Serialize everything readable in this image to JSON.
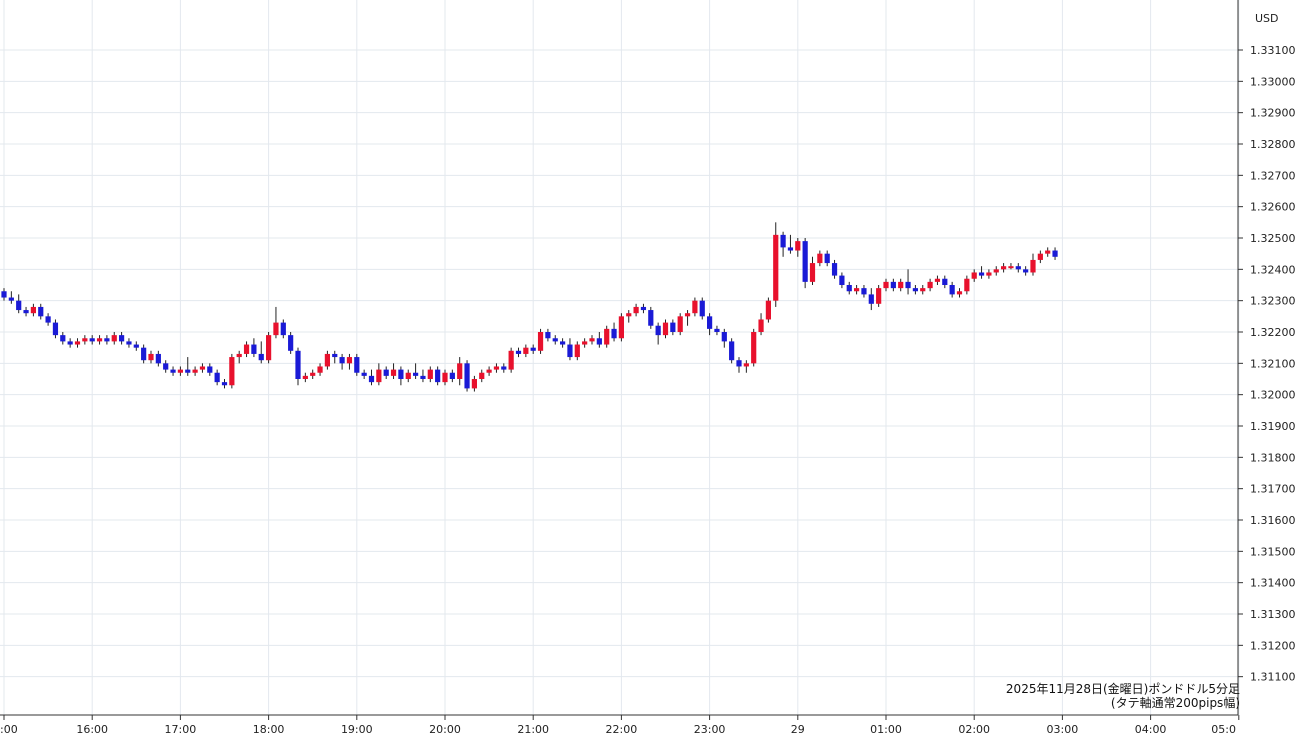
{
  "chart_data": {
    "type": "candlestick",
    "currency_unit": "USD",
    "note_line1": "2025年11月28日(金曜日)ポンドドル5分足",
    "note_line2": "(タテ軸通常200pips幅)",
    "ylim": [
      1.3105,
      1.3325
    ],
    "y_ticks": [
      "1.33100",
      "1.33000",
      "1.32900",
      "1.32800",
      "1.32700",
      "1.32600",
      "1.32500",
      "1.32400",
      "1.32300",
      "1.32200",
      "1.32100",
      "1.32000",
      "1.31900",
      "1.31800",
      "1.31700",
      "1.31600",
      "1.31500",
      "1.31400",
      "1.31300",
      "1.31200",
      "1.31100"
    ],
    "x_ticks": [
      {
        "label": ":00",
        "bar": 0
      },
      {
        "label": "16:00",
        "bar": 12
      },
      {
        "label": "17:00",
        "bar": 24
      },
      {
        "label": "18:00",
        "bar": 36
      },
      {
        "label": "19:00",
        "bar": 48
      },
      {
        "label": "20:00",
        "bar": 60
      },
      {
        "label": "21:00",
        "bar": 72
      },
      {
        "label": "22:00",
        "bar": 84
      },
      {
        "label": "23:00",
        "bar": 96
      },
      {
        "label": "29",
        "bar": 108
      },
      {
        "label": "01:00",
        "bar": 120
      },
      {
        "label": "02:00",
        "bar": 132
      },
      {
        "label": "03:00",
        "bar": 144
      },
      {
        "label": "04:00",
        "bar": 156
      },
      {
        "label": "05:0",
        "bar": 168
      }
    ],
    "up_color": "#e8112d",
    "down_color": "#1a1ad6",
    "grid": true,
    "candles": [
      [
        1.3233,
        1.3234,
        1.323,
        1.3231
      ],
      [
        1.3231,
        1.3233,
        1.3229,
        1.323
      ],
      [
        1.323,
        1.3232,
        1.3226,
        1.3227
      ],
      [
        1.3227,
        1.3228,
        1.3225,
        1.3226
      ],
      [
        1.3226,
        1.3229,
        1.3225,
        1.3228
      ],
      [
        1.3228,
        1.3229,
        1.3224,
        1.3225
      ],
      [
        1.3225,
        1.3226,
        1.3222,
        1.3223
      ],
      [
        1.3223,
        1.3224,
        1.3218,
        1.3219
      ],
      [
        1.3219,
        1.322,
        1.3216,
        1.3217
      ],
      [
        1.3217,
        1.3218,
        1.3215,
        1.3216
      ],
      [
        1.3216,
        1.3218,
        1.3215,
        1.3217
      ],
      [
        1.3217,
        1.3219,
        1.3216,
        1.3218
      ],
      [
        1.3218,
        1.3219,
        1.3216,
        1.3217
      ],
      [
        1.3217,
        1.3219,
        1.3216,
        1.3218
      ],
      [
        1.3218,
        1.3219,
        1.3216,
        1.3217
      ],
      [
        1.3217,
        1.322,
        1.3216,
        1.3219
      ],
      [
        1.3219,
        1.322,
        1.3216,
        1.3217
      ],
      [
        1.3217,
        1.3218,
        1.3215,
        1.3216
      ],
      [
        1.3216,
        1.3217,
        1.3214,
        1.3215
      ],
      [
        1.3215,
        1.3216,
        1.321,
        1.3211
      ],
      [
        1.3211,
        1.3214,
        1.321,
        1.3213
      ],
      [
        1.3213,
        1.3214,
        1.3209,
        1.321
      ],
      [
        1.321,
        1.3211,
        1.3207,
        1.3208
      ],
      [
        1.3208,
        1.3209,
        1.3206,
        1.3207
      ],
      [
        1.3207,
        1.3209,
        1.3206,
        1.3208
      ],
      [
        1.3208,
        1.3212,
        1.3206,
        1.3207
      ],
      [
        1.3207,
        1.3209,
        1.3206,
        1.3208
      ],
      [
        1.3208,
        1.321,
        1.3207,
        1.3209
      ],
      [
        1.3209,
        1.321,
        1.3206,
        1.3207
      ],
      [
        1.3207,
        1.3208,
        1.3203,
        1.3204
      ],
      [
        1.3204,
        1.3205,
        1.3202,
        1.3203
      ],
      [
        1.3203,
        1.3213,
        1.3202,
        1.3212
      ],
      [
        1.3212,
        1.3214,
        1.321,
        1.3213
      ],
      [
        1.3213,
        1.3217,
        1.3212,
        1.3216
      ],
      [
        1.3216,
        1.3218,
        1.3212,
        1.3213
      ],
      [
        1.3213,
        1.3217,
        1.321,
        1.3211
      ],
      [
        1.3211,
        1.322,
        1.321,
        1.3219
      ],
      [
        1.3219,
        1.3228,
        1.3218,
        1.3223
      ],
      [
        1.3223,
        1.3224,
        1.3218,
        1.3219
      ],
      [
        1.3219,
        1.322,
        1.3213,
        1.3214
      ],
      [
        1.3214,
        1.3215,
        1.3203,
        1.3205
      ],
      [
        1.3205,
        1.3207,
        1.3204,
        1.3206
      ],
      [
        1.3206,
        1.3208,
        1.3205,
        1.3207
      ],
      [
        1.3207,
        1.321,
        1.3206,
        1.3209
      ],
      [
        1.3209,
        1.3214,
        1.3208,
        1.3213
      ],
      [
        1.3213,
        1.3214,
        1.321,
        1.3212
      ],
      [
        1.3212,
        1.3213,
        1.3208,
        1.321
      ],
      [
        1.321,
        1.3213,
        1.3208,
        1.3212
      ],
      [
        1.3212,
        1.3213,
        1.3206,
        1.3207
      ],
      [
        1.3207,
        1.3208,
        1.3205,
        1.3206
      ],
      [
        1.3206,
        1.3208,
        1.3203,
        1.3204
      ],
      [
        1.3204,
        1.321,
        1.3203,
        1.3208
      ],
      [
        1.3208,
        1.3209,
        1.3205,
        1.3206
      ],
      [
        1.3206,
        1.321,
        1.3205,
        1.3208
      ],
      [
        1.3208,
        1.3209,
        1.3203,
        1.3205
      ],
      [
        1.3205,
        1.3208,
        1.3204,
        1.3207
      ],
      [
        1.3207,
        1.321,
        1.3205,
        1.3206
      ],
      [
        1.3206,
        1.3208,
        1.3204,
        1.3205
      ],
      [
        1.3205,
        1.3209,
        1.3204,
        1.3208
      ],
      [
        1.3208,
        1.3209,
        1.3203,
        1.3204
      ],
      [
        1.3204,
        1.3208,
        1.3203,
        1.3207
      ],
      [
        1.3207,
        1.3208,
        1.3204,
        1.3205
      ],
      [
        1.3205,
        1.3212,
        1.3203,
        1.321
      ],
      [
        1.321,
        1.3211,
        1.3201,
        1.3202
      ],
      [
        1.3202,
        1.3206,
        1.3201,
        1.3205
      ],
      [
        1.3205,
        1.3208,
        1.3204,
        1.3207
      ],
      [
        1.3207,
        1.3209,
        1.3206,
        1.3208
      ],
      [
        1.3208,
        1.321,
        1.3207,
        1.3209
      ],
      [
        1.3209,
        1.321,
        1.3207,
        1.3208
      ],
      [
        1.3208,
        1.3215,
        1.3207,
        1.3214
      ],
      [
        1.3214,
        1.3215,
        1.3212,
        1.3213
      ],
      [
        1.3213,
        1.3216,
        1.3212,
        1.3215
      ],
      [
        1.3215,
        1.3216,
        1.3213,
        1.3214
      ],
      [
        1.3214,
        1.3221,
        1.3213,
        1.322
      ],
      [
        1.322,
        1.3221,
        1.3217,
        1.3218
      ],
      [
        1.3218,
        1.3219,
        1.3216,
        1.3217
      ],
      [
        1.3217,
        1.3218,
        1.3215,
        1.3216
      ],
      [
        1.3216,
        1.3218,
        1.3211,
        1.3212
      ],
      [
        1.3212,
        1.3217,
        1.3211,
        1.3216
      ],
      [
        1.3216,
        1.3218,
        1.3215,
        1.3217
      ],
      [
        1.3217,
        1.3219,
        1.3216,
        1.3218
      ],
      [
        1.3218,
        1.322,
        1.3215,
        1.3216
      ],
      [
        1.3216,
        1.3222,
        1.3215,
        1.3221
      ],
      [
        1.3221,
        1.3223,
        1.3217,
        1.3218
      ],
      [
        1.3218,
        1.3226,
        1.3217,
        1.3225
      ],
      [
        1.3225,
        1.3227,
        1.3223,
        1.3226
      ],
      [
        1.3226,
        1.3229,
        1.3225,
        1.3228
      ],
      [
        1.3228,
        1.3229,
        1.3226,
        1.3227
      ],
      [
        1.3227,
        1.3228,
        1.3221,
        1.3222
      ],
      [
        1.3222,
        1.3223,
        1.3216,
        1.3219
      ],
      [
        1.3219,
        1.3224,
        1.3218,
        1.3223
      ],
      [
        1.3223,
        1.3224,
        1.3219,
        1.322
      ],
      [
        1.322,
        1.3226,
        1.3219,
        1.3225
      ],
      [
        1.3225,
        1.3227,
        1.3222,
        1.3226
      ],
      [
        1.3226,
        1.3231,
        1.3225,
        1.323
      ],
      [
        1.323,
        1.3231,
        1.3224,
        1.3225
      ],
      [
        1.3225,
        1.3226,
        1.3219,
        1.3221
      ],
      [
        1.3221,
        1.3222,
        1.3219,
        1.322
      ],
      [
        1.322,
        1.3221,
        1.3215,
        1.3217
      ],
      [
        1.3217,
        1.3218,
        1.321,
        1.3211
      ],
      [
        1.3211,
        1.3212,
        1.3207,
        1.3209
      ],
      [
        1.3209,
        1.3211,
        1.3207,
        1.321
      ],
      [
        1.321,
        1.3221,
        1.3209,
        1.322
      ],
      [
        1.322,
        1.3226,
        1.3219,
        1.3224
      ],
      [
        1.3224,
        1.3231,
        1.3223,
        1.323
      ],
      [
        1.323,
        1.3255,
        1.3228,
        1.3251
      ],
      [
        1.3251,
        1.3252,
        1.3244,
        1.3247
      ],
      [
        1.3247,
        1.3251,
        1.3245,
        1.3246
      ],
      [
        1.3246,
        1.325,
        1.3244,
        1.3249
      ],
      [
        1.3249,
        1.325,
        1.3234,
        1.3236
      ],
      [
        1.3236,
        1.3244,
        1.3235,
        1.3242
      ],
      [
        1.3242,
        1.3246,
        1.3241,
        1.3245
      ],
      [
        1.3245,
        1.3246,
        1.3241,
        1.3242
      ],
      [
        1.3242,
        1.3243,
        1.3237,
        1.3238
      ],
      [
        1.3238,
        1.3239,
        1.3234,
        1.3235
      ],
      [
        1.3235,
        1.3236,
        1.3232,
        1.3233
      ],
      [
        1.3233,
        1.3235,
        1.3232,
        1.3234
      ],
      [
        1.3234,
        1.3235,
        1.3231,
        1.3232
      ],
      [
        1.3232,
        1.3234,
        1.3227,
        1.3229
      ],
      [
        1.3229,
        1.3235,
        1.3228,
        1.3234
      ],
      [
        1.3234,
        1.3237,
        1.3233,
        1.3236
      ],
      [
        1.3236,
        1.3237,
        1.3233,
        1.3234
      ],
      [
        1.3234,
        1.3237,
        1.3233,
        1.3236
      ],
      [
        1.3236,
        1.324,
        1.3232,
        1.3234
      ],
      [
        1.3234,
        1.3235,
        1.3232,
        1.3233
      ],
      [
        1.3233,
        1.3235,
        1.3232,
        1.3234
      ],
      [
        1.3234,
        1.3237,
        1.3233,
        1.3236
      ],
      [
        1.3236,
        1.3238,
        1.3235,
        1.3237
      ],
      [
        1.3237,
        1.3238,
        1.3234,
        1.3235
      ],
      [
        1.3235,
        1.3236,
        1.3231,
        1.3232
      ],
      [
        1.3232,
        1.3234,
        1.3231,
        1.3233
      ],
      [
        1.3233,
        1.3238,
        1.3232,
        1.3237
      ],
      [
        1.3237,
        1.324,
        1.3236,
        1.3239
      ],
      [
        1.3239,
        1.3241,
        1.3237,
        1.3238
      ],
      [
        1.3238,
        1.324,
        1.3237,
        1.3239
      ],
      [
        1.3239,
        1.3241,
        1.3238,
        1.324
      ],
      [
        1.324,
        1.3242,
        1.3239,
        1.3241
      ],
      [
        1.3241,
        1.3242,
        1.324,
        1.3241
      ],
      [
        1.3241,
        1.3242,
        1.3239,
        1.324
      ],
      [
        1.324,
        1.3241,
        1.3238,
        1.3239
      ],
      [
        1.3239,
        1.3245,
        1.3238,
        1.3243
      ],
      [
        1.3243,
        1.3246,
        1.3242,
        1.3245
      ],
      [
        1.3245,
        1.3247,
        1.3244,
        1.3246
      ],
      [
        1.3246,
        1.3247,
        1.3243,
        1.3244
      ]
    ]
  }
}
